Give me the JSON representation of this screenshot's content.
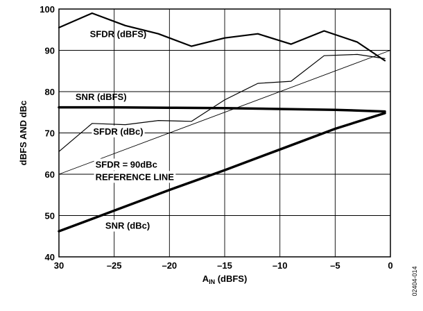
{
  "chart_data": {
    "type": "line",
    "xlabel_main": "A",
    "xlabel_sub": "IN",
    "xlabel_rest": " (dBFS)",
    "ylabel": "dBFS AND dBc",
    "xlim": [
      -30,
      0
    ],
    "ylim": [
      40,
      100
    ],
    "xticks": [
      -30,
      -25,
      -20,
      -15,
      -10,
      -5,
      0
    ],
    "xtick_labels": [
      "30",
      "–25",
      "–20",
      "–15",
      "–10",
      "–5",
      "0"
    ],
    "yticks": [
      40,
      50,
      60,
      70,
      80,
      90,
      100
    ],
    "ytick_labels": [
      "40",
      "50",
      "60",
      "70",
      "80",
      "90",
      "100"
    ],
    "grid": true,
    "figure_id": "02404-014",
    "series": [
      {
        "name": "SFDR (dBFS)",
        "x": [
          -30,
          -27,
          -24,
          -21,
          -18,
          -15,
          -12,
          -9,
          -6,
          -3,
          -0.5
        ],
        "y": [
          95.5,
          99,
          96,
          94,
          91,
          93,
          94,
          91.5,
          94.7,
          92,
          87.5
        ],
        "width": 2.2
      },
      {
        "name": "SFDR (dBc)",
        "x": [
          -30,
          -27,
          -24,
          -21,
          -18,
          -15,
          -12,
          -9,
          -6,
          -3,
          -0.5
        ],
        "y": [
          65.5,
          72.3,
          72,
          73,
          72.8,
          78,
          82,
          82.5,
          88.7,
          89,
          88
        ],
        "width": 1.2
      },
      {
        "name": "SNR (dBFS)",
        "x": [
          -30,
          -25,
          -20,
          -15,
          -10,
          -5,
          -0.5
        ],
        "y": [
          76.2,
          76.2,
          76.1,
          76,
          75.8,
          75.6,
          75.2
        ],
        "width": 3.5
      },
      {
        "name": "SNR (dBc)",
        "x": [
          -30,
          -25,
          -20,
          -15,
          -10,
          -5,
          -0.5
        ],
        "y": [
          46.2,
          51.2,
          56.2,
          61,
          66,
          71,
          74.8
        ],
        "width": 3.5
      },
      {
        "name": "SFDR = 90dBc REFERENCE LINE",
        "x": [
          -30,
          0
        ],
        "y": [
          60,
          90
        ],
        "width": 0.9
      }
    ],
    "annotations": [
      {
        "name": "sfdr-dbfs-label",
        "text": "SFDR (dBFS)",
        "x": -27.2,
        "y": 93.2,
        "anchor": "start",
        "bg": false
      },
      {
        "name": "snr-dbfs-label",
        "text": "SNR (dBFS)",
        "x": -28.5,
        "y": 78.0,
        "anchor": "start",
        "bg": false
      },
      {
        "name": "sfdr-dbc-label",
        "text": "SFDR (dBc)",
        "x": -26.9,
        "y": 69.6,
        "anchor": "start",
        "bg": true
      },
      {
        "name": "sfdr-ref-label-line1",
        "text": "SFDR = 90dBc",
        "x": -26.7,
        "y": 61.6,
        "anchor": "start",
        "bg": true
      },
      {
        "name": "sfdr-ref-label-line2",
        "text": "REFERENCE LINE",
        "x": -26.7,
        "y": 58.6,
        "anchor": "start",
        "bg": true
      },
      {
        "name": "snr-dbc-label",
        "text": "SNR (dBc)",
        "x": -25.8,
        "y": 46.8,
        "anchor": "start",
        "bg": true
      }
    ]
  }
}
